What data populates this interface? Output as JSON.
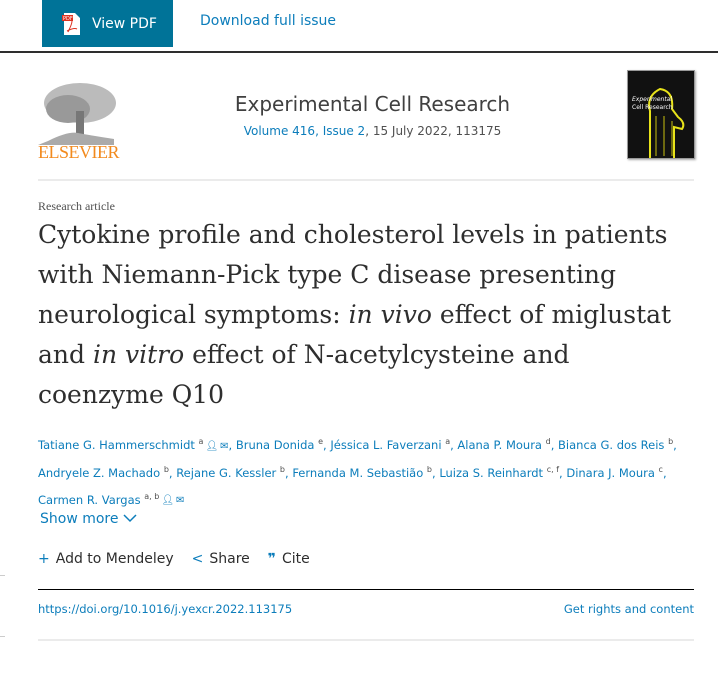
{
  "toolbar": {
    "view_pdf": "View PDF",
    "download_issue": "Download full issue"
  },
  "journal": {
    "publisher_logo": "ELSEVIER",
    "title": "Experimental Cell Research",
    "volume_link": "Volume 416, Issue 2",
    "date_pages": ", 15 July 2022, 113175",
    "cover_alt": "Experimental Cell Research"
  },
  "article": {
    "type": "Research article",
    "title_parts": [
      "Cytokine profile and cholesterol levels in patients with Niemann-Pick type C disease presenting neurological symptoms: ",
      "in vivo",
      " effect of miglustat and ",
      "in vitro",
      " effect of N-acetylcysteine and coenzyme Q10"
    ],
    "authors": [
      {
        "name": "Tatiane G. Hammerschmidt",
        "sup": "a",
        "icons": true
      },
      {
        "name": "Bruna Donida",
        "sup": "e"
      },
      {
        "name": "Jéssica L. Faverzani",
        "sup": "a"
      },
      {
        "name": "Alana P. Moura",
        "sup": "d"
      },
      {
        "name": "Bianca G. dos Reis",
        "sup": "b"
      },
      {
        "name": "Andryele Z. Machado",
        "sup": "b"
      },
      {
        "name": "Rejane G. Kessler",
        "sup": "b"
      },
      {
        "name": "Fernanda M. Sebastião",
        "sup": "b"
      },
      {
        "name": "Luiza S. Reinhardt",
        "sup": "c, f"
      },
      {
        "name": "Dinara J. Moura",
        "sup": "c"
      },
      {
        "name": "Carmen R. Vargas",
        "sup": "a, b",
        "icons": true
      }
    ],
    "show_more": "Show more",
    "actions": {
      "mendeley": "Add to Mendeley",
      "share": "Share",
      "cite": "Cite"
    },
    "doi": "https://doi.org/10.1016/j.yexcr.2022.113175",
    "rights": "Get rights and content"
  },
  "colors": {
    "accent": "#007398",
    "link": "#0c7dbb",
    "elsevier_orange": "#f28a1e"
  }
}
